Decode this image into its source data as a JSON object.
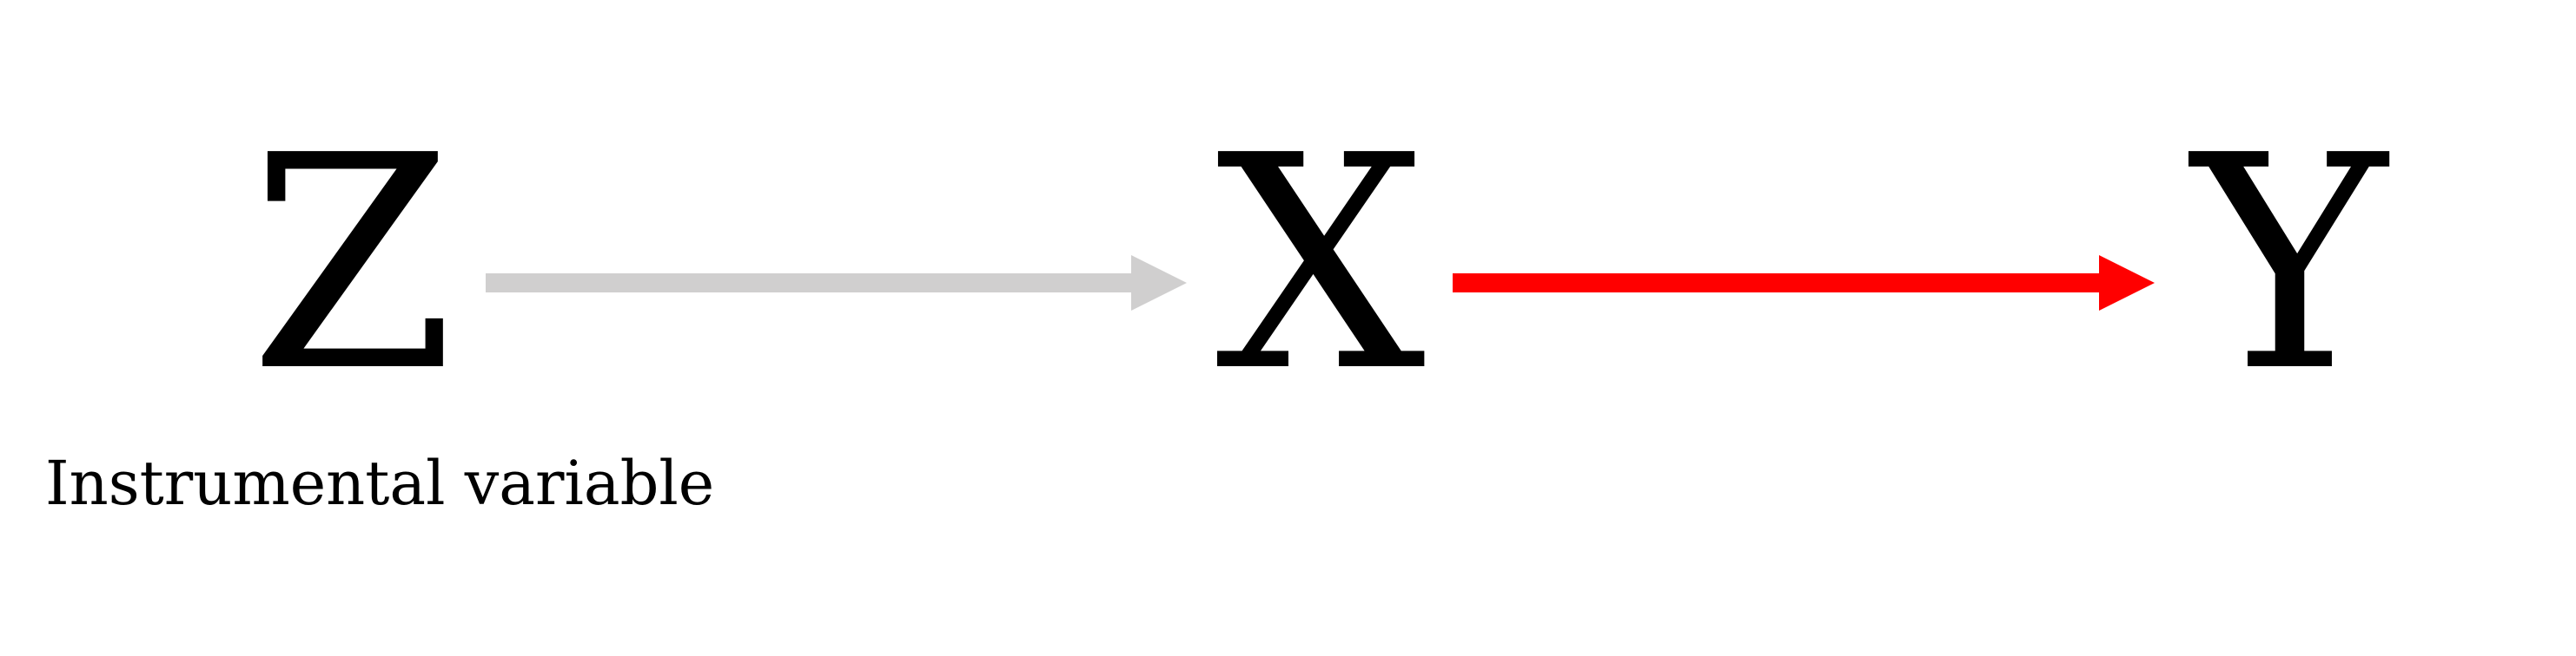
{
  "nodes": {
    "z": "Z",
    "x": "X",
    "y": "Y"
  },
  "z_caption": "Instrumental variable",
  "colors": {
    "z_to_x_arrow": "#d0cfcf",
    "x_to_y_arrow": "#ff0000",
    "text": "#000000"
  }
}
